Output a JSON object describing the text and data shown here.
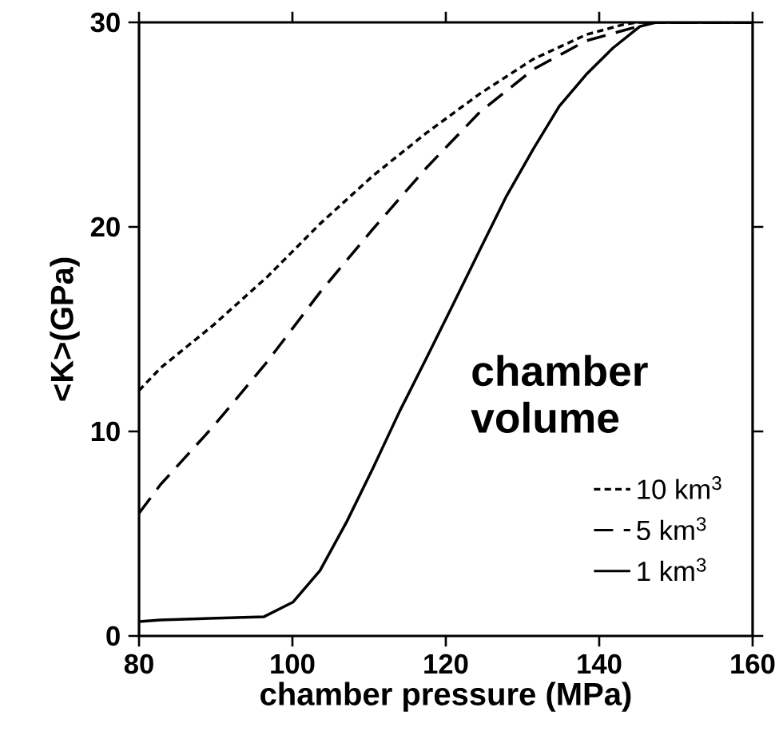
{
  "chart_data": {
    "type": "line",
    "xlabel": "chamber pressure (MPa)",
    "ylabel": "<K>(GPa)",
    "legend_title": "chamber volume",
    "legend": "bottom right",
    "xlim": [
      80,
      160
    ],
    "ylim": [
      0,
      30
    ],
    "xticks": [
      80,
      100,
      120,
      140,
      160
    ],
    "yticks": [
      0,
      10,
      20,
      30
    ],
    "series": [
      {
        "name": "10 km$^{3}$",
        "color": "#000000",
        "line_style": "dotted",
        "x": [
          80,
          82.8,
          89.7,
          96.7,
          103.6,
          110.5,
          117.5,
          124.4,
          131.4,
          138.3,
          143.2,
          145,
          160
        ],
        "values": [
          12.0,
          13.1,
          15.2,
          17.55,
          20.15,
          22.5,
          24.6,
          26.5,
          28.2,
          29.4,
          29.9,
          30,
          30
        ]
      },
      {
        "name": "5 km$^{3}$",
        "color": "#000000",
        "line_style": "dashed",
        "x": [
          80,
          82.8,
          89.7,
          96.7,
          103.6,
          110.5,
          117.5,
          124.4,
          131.4,
          138.3,
          146,
          147,
          160
        ],
        "values": [
          6.0,
          7.4,
          10.25,
          13.4,
          16.8,
          19.9,
          22.9,
          25.6,
          27.7,
          29.1,
          29.9,
          30,
          30
        ]
      },
      {
        "name": "1 km$^{3}$",
        "color": "#000000",
        "line_style": "solid",
        "x": [
          80,
          82.8,
          96.3,
          100.1,
          103.6,
          107.1,
          110.5,
          114,
          117.5,
          121,
          124.4,
          127.9,
          131.4,
          134.8,
          138.3,
          141.8,
          145.3,
          147.4,
          160
        ],
        "values": [
          0.7,
          0.78,
          0.94,
          1.66,
          3.2,
          5.6,
          8.2,
          11.0,
          13.6,
          16.25,
          18.85,
          21.5,
          23.8,
          25.9,
          27.45,
          28.75,
          29.8,
          30,
          30
        ]
      }
    ]
  }
}
